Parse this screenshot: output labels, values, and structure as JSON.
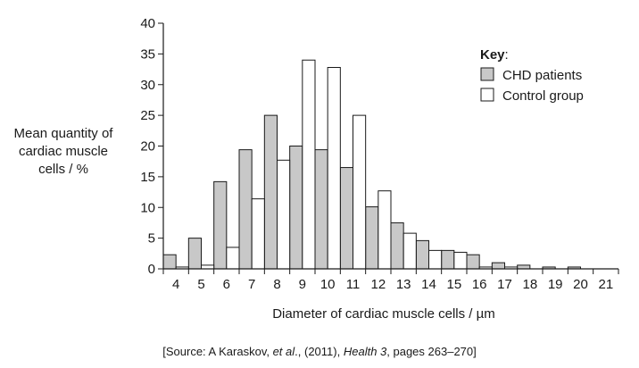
{
  "chart_data": {
    "type": "bar",
    "x": [
      4,
      5,
      6,
      7,
      8,
      9,
      10,
      11,
      12,
      13,
      14,
      15,
      16,
      17,
      18,
      19,
      20,
      21
    ],
    "xlabel": "Diameter of cardiac muscle cells / µm",
    "ylabel_lines": [
      "Mean quantity of",
      "cardiac muscle",
      "cells / %"
    ],
    "ylim": [
      0,
      40
    ],
    "yticks": [
      0,
      5,
      10,
      15,
      20,
      25,
      30,
      35,
      40
    ],
    "legend": {
      "title": "Key",
      "title_suffix": ":",
      "placement": "top-right"
    },
    "series": [
      {
        "name": "CHD patients",
        "color": "#c8c8c8",
        "bins": [
          3.5,
          4.5,
          5.5,
          6.5,
          7.5,
          8.5,
          9.5,
          10.5,
          11.5,
          12.5,
          13.5,
          14.5,
          15.5,
          16.5,
          17.5,
          18.5,
          19.5,
          20.5
        ],
        "values": [
          2.3,
          5.0,
          14.2,
          19.4,
          25.0,
          20.0,
          19.4,
          16.5,
          10.1,
          7.5,
          4.6,
          3.0,
          2.3,
          1.0,
          0.6,
          0.3,
          0.3,
          0
        ]
      },
      {
        "name": "Control group",
        "color": "#ffffff",
        "bins": [
          3.5,
          4.5,
          5.5,
          6.5,
          7.5,
          8.5,
          9.5,
          10.5,
          11.5,
          12.5,
          13.5,
          14.5,
          15.5,
          16.5,
          17.5,
          18.5,
          19.5,
          20.5
        ],
        "values": [
          0.3,
          0.6,
          3.5,
          11.4,
          17.7,
          34.0,
          32.8,
          25.0,
          12.7,
          5.8,
          3.0,
          2.7,
          0.3,
          0.3,
          0,
          0,
          0,
          0
        ]
      }
    ]
  },
  "source": {
    "prefix": "[Source: A Karaskov, ",
    "etal": "et al",
    "mid": "., (2011), ",
    "journal": "Health 3",
    "suffix": ", pages 263–270]"
  }
}
